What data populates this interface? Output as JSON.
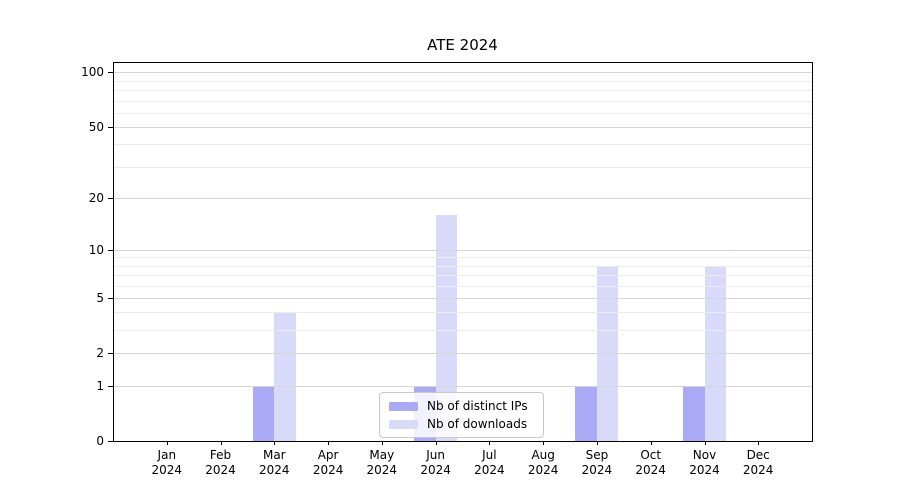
{
  "chart_data": {
    "type": "bar",
    "title": "ATE 2024",
    "categories": [
      "Jan",
      "Feb",
      "Mar",
      "Apr",
      "May",
      "Jun",
      "Jul",
      "Aug",
      "Sep",
      "Oct",
      "Nov",
      "Dec"
    ],
    "year": "2024",
    "series": [
      {
        "name": "Nb of distinct IPs",
        "color": "#a9a9f6",
        "values": [
          0,
          0,
          1,
          0,
          0,
          1,
          0,
          0,
          1,
          0,
          1,
          0
        ]
      },
      {
        "name": "Nb of downloads",
        "color": "#d9d9f9",
        "values": [
          0,
          0,
          4,
          0,
          0,
          16,
          0,
          0,
          8,
          0,
          8,
          0
        ]
      }
    ],
    "y_scale": "log10(1+v)",
    "ylim": [
      0,
      114
    ],
    "yticks": [
      0,
      1,
      2,
      5,
      10,
      20,
      50,
      100
    ],
    "minor_gridlines": [
      3,
      4,
      6,
      7,
      8,
      9,
      30,
      40,
      60,
      70,
      80,
      90
    ],
    "grid": "horizontal-only",
    "legend_position": "lower center",
    "bar_width_fraction": 0.4
  },
  "colors": {
    "major_grid": "#d6d6d6",
    "minor_grid": "#ececec",
    "spine": "#000000",
    "background": "#ffffff"
  }
}
